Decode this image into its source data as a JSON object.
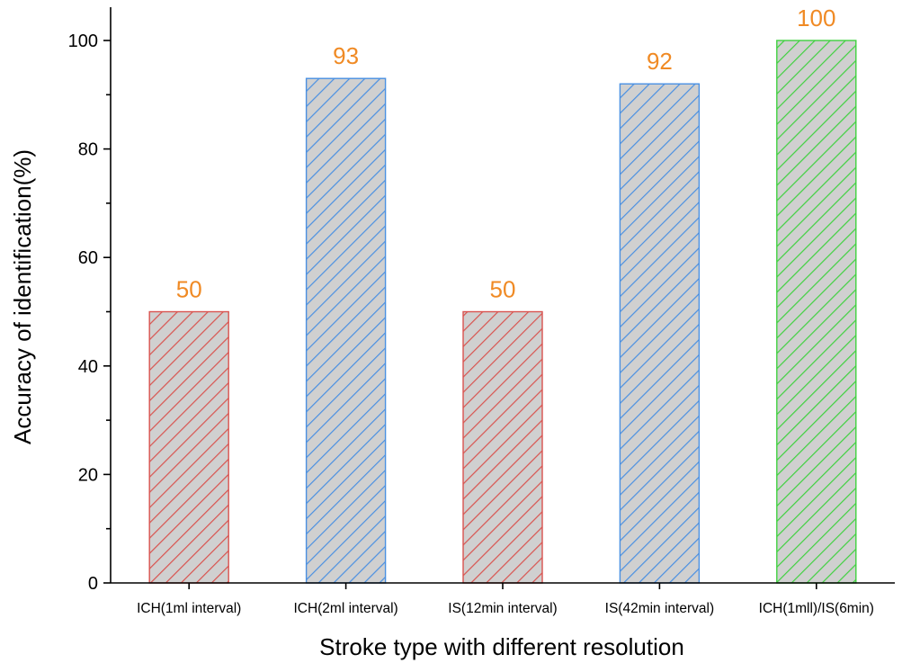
{
  "chart_data": {
    "type": "bar",
    "title": "",
    "xlabel": "Stroke type with different resolution",
    "ylabel": "Accuracy of identification(%)",
    "categories": [
      "ICH(1ml interval)",
      "ICH(2ml interval)",
      "IS(12min interval)",
      "IS(42min interval)",
      "ICH(1mll)/IS(6min)"
    ],
    "values": [
      50,
      93,
      50,
      92,
      100
    ],
    "value_labels": [
      "50",
      "93",
      "50",
      "92",
      "100"
    ],
    "bar_colors": [
      "#d9534f",
      "#4a90e2",
      "#d9534f",
      "#4a90e2",
      "#3fd13f"
    ],
    "bar_fill": "#d0d0d0",
    "bar_pattern": "diagonal-hatch",
    "label_color": "#f08a24",
    "ylim": [
      0,
      100
    ],
    "yticks": [
      0,
      20,
      40,
      60,
      80,
      100
    ],
    "ytick_labels": [
      "0",
      "20",
      "40",
      "60",
      "80",
      "100"
    ],
    "grid": false,
    "legend": "none"
  }
}
